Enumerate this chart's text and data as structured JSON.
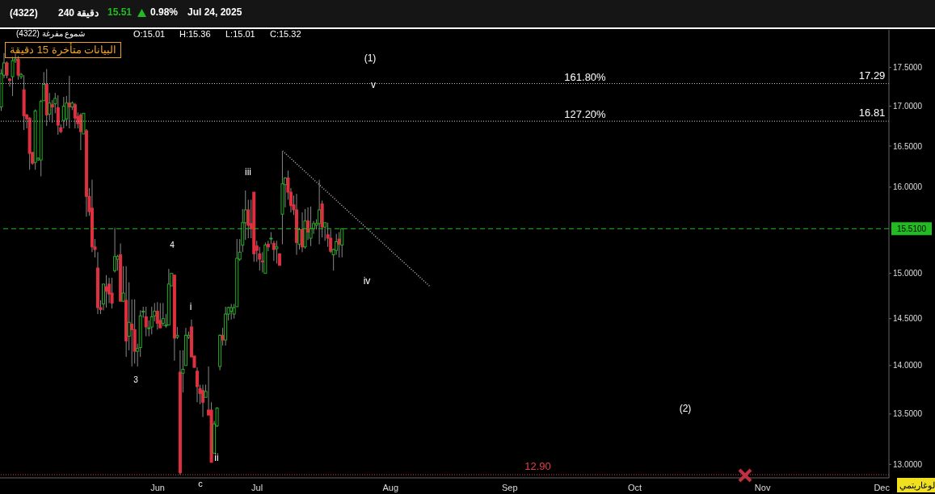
{
  "chart_data": {
    "type": "candlestick",
    "title": "(4322)",
    "subtitle": "240 دقيقة",
    "categories": [
      null,
      null,
      null,
      null,
      null,
      null,
      null,
      null,
      null,
      null,
      null,
      null,
      null,
      null,
      null,
      null,
      null,
      null,
      null,
      null,
      null,
      null,
      null,
      null,
      null,
      null,
      null,
      null,
      null,
      null,
      null,
      null,
      null,
      null,
      null,
      null,
      null,
      null,
      null,
      null,
      null,
      null,
      null,
      null,
      null,
      null,
      null,
      null,
      null,
      null,
      null,
      null,
      null,
      null,
      null,
      "Jun",
      null,
      null,
      null,
      null,
      null,
      null,
      null,
      null,
      null,
      null,
      null,
      null,
      null,
      null,
      null,
      null,
      null,
      null,
      null,
      null,
      null,
      null,
      null,
      null,
      null,
      null,
      null,
      null,
      null,
      null,
      null,
      null,
      null,
      null,
      "Jul",
      null,
      null,
      null,
      null,
      null,
      null,
      null,
      null,
      null,
      null,
      null,
      null,
      null,
      null,
      null,
      null,
      null,
      null,
      null,
      null,
      null,
      null,
      null,
      null,
      null,
      null,
      null,
      null,
      null,
      null,
      null,
      null,
      null,
      null,
      null,
      null,
      null,
      null,
      null,
      null,
      null,
      null,
      null,
      null,
      null,
      null,
      "Aug",
      null,
      null,
      null,
      null,
      null,
      null,
      null,
      null,
      null,
      null,
      null,
      null,
      null,
      null,
      null,
      null,
      null,
      null,
      null,
      null,
      null,
      null,
      null,
      null,
      null,
      null,
      null,
      null,
      null,
      null,
      null,
      null,
      null,
      null,
      null,
      null,
      null,
      null,
      null,
      null,
      null,
      "Sep",
      null,
      null,
      null,
      null,
      null,
      null,
      null,
      null,
      null,
      null,
      null,
      null,
      null,
      null,
      null,
      null,
      null,
      null,
      null,
      null,
      null,
      null,
      null,
      null,
      null,
      null,
      null,
      null,
      null,
      null,
      null,
      null,
      null,
      null,
      null,
      null,
      null,
      null,
      null,
      null,
      null,
      null,
      null,
      "Oct",
      null,
      null,
      null,
      null,
      null,
      null,
      null,
      null,
      null,
      null,
      null,
      null,
      null,
      null,
      null,
      null,
      null,
      null,
      null,
      null,
      null,
      null,
      null,
      null,
      null,
      null,
      null,
      null,
      null,
      null,
      null,
      null,
      null,
      null,
      null,
      null,
      null,
      null,
      null,
      null,
      null,
      null,
      null,
      null,
      "Nov",
      null,
      null,
      null,
      null,
      null,
      null,
      null,
      null,
      null,
      null,
      null,
      null,
      null,
      null,
      null,
      null,
      null,
      null,
      null,
      null,
      null,
      null,
      null,
      null,
      null,
      null,
      null,
      null,
      null,
      null,
      null,
      null,
      null,
      null,
      null,
      null,
      null,
      null,
      null,
      null,
      null,
      "Dec",
      null,
      null
    ],
    "ohlc": [
      [
        16.99,
        17.48,
        16.94,
        17.42
      ],
      [
        17.4,
        17.69,
        17.36,
        17.56
      ],
      [
        17.56,
        17.58,
        17.36,
        17.4
      ],
      [
        17.35,
        17.36,
        17.25,
        17.33
      ],
      [
        17.38,
        17.64,
        17.13,
        17.59
      ],
      [
        17.59,
        17.68,
        17.56,
        17.61
      ],
      [
        17.61,
        17.65,
        17.34,
        17.4
      ],
      [
        17.38,
        17.43,
        17.35,
        17.41
      ],
      [
        17.21,
        17.4,
        16.7,
        16.88
      ],
      [
        16.89,
        16.9,
        16.72,
        16.84
      ],
      [
        16.85,
        16.86,
        16.21,
        16.41
      ],
      [
        16.42,
        16.43,
        16.27,
        16.29
      ],
      [
        16.3,
        16.96,
        16.21,
        16.94
      ],
      [
        16.33,
        16.36,
        16.32,
        16.35
      ],
      [
        16.33,
        17.08,
        16.13,
        17.06
      ],
      [
        17.07,
        17.44,
        17.07,
        17.28
      ],
      [
        17.28,
        17.48,
        16.75,
        16.89
      ],
      [
        16.9,
        17.17,
        16.82,
        17.04
      ],
      [
        17.02,
        17.08,
        16.79,
        16.99
      ],
      [
        17.03,
        17.17,
        16.91,
        17.1
      ],
      [
        16.98,
        17.14,
        16.64,
        16.76
      ],
      [
        16.73,
        16.77,
        16.66,
        16.68
      ],
      [
        16.82,
        17.12,
        16.72,
        17.0
      ],
      [
        16.84,
        17.13,
        16.75,
        17.04
      ],
      [
        17.04,
        17.39,
        16.72,
        16.99
      ],
      [
        16.99,
        17.06,
        16.95,
        17.04
      ],
      [
        17.02,
        17.04,
        16.72,
        16.85
      ],
      [
        16.87,
        16.92,
        16.72,
        16.78
      ],
      [
        16.89,
        16.91,
        16.45,
        16.68
      ],
      [
        16.65,
        16.91,
        16.65,
        16.91
      ],
      [
        16.69,
        16.71,
        15.65,
        15.89
      ],
      [
        15.89,
        15.99,
        15.66,
        15.71
      ],
      [
        15.75,
        16.09,
        15.24,
        15.3
      ],
      [
        15.3,
        15.39,
        15.18,
        15.27
      ],
      [
        15.06,
        15.24,
        14.55,
        14.62
      ],
      [
        14.62,
        14.7,
        14.55,
        14.6
      ],
      [
        14.66,
        14.88,
        14.59,
        14.88
      ],
      [
        14.85,
        14.98,
        14.62,
        14.8
      ],
      [
        14.88,
        14.95,
        14.67,
        14.77
      ],
      [
        14.78,
        14.95,
        14.61,
        14.67
      ],
      [
        15.03,
        15.52,
        15.01,
        15.19
      ],
      [
        15.16,
        15.21,
        15.03,
        15.19
      ],
      [
        15.21,
        15.34,
        14.69,
        14.69
      ],
      [
        14.69,
        15.08,
        14.68,
        14.78
      ],
      [
        14.7,
        15.08,
        14.09,
        14.26
      ],
      [
        14.31,
        14.9,
        14.16,
        14.46
      ],
      [
        14.44,
        14.71,
        13.99,
        14.38
      ],
      [
        14.38,
        14.71,
        14.02,
        14.15
      ],
      [
        14.15,
        14.23,
        13.99,
        14.18
      ],
      [
        14.19,
        14.59,
        14.09,
        14.53
      ],
      [
        14.58,
        14.63,
        14.51,
        14.58
      ],
      [
        14.52,
        14.63,
        14.31,
        14.41
      ],
      [
        14.4,
        14.48,
        14.31,
        14.4
      ],
      [
        14.41,
        14.63,
        14.33,
        14.52
      ],
      [
        14.53,
        14.67,
        14.47,
        14.58
      ],
      [
        14.58,
        14.68,
        14.38,
        14.45
      ],
      [
        14.48,
        14.67,
        14.4,
        14.4
      ],
      [
        14.45,
        14.67,
        14.42,
        14.5
      ],
      [
        14.43,
        14.55,
        14.4,
        14.43
      ],
      [
        14.43,
        15.05,
        14.43,
        14.88
      ],
      [
        14.86,
        15.0,
        14.86,
        15.0
      ],
      [
        14.98,
        14.98,
        14.05,
        14.29
      ],
      [
        14.3,
        14.41,
        14.28,
        14.32
      ],
      [
        13.93,
        14.16,
        12.9,
        12.92
      ],
      [
        13.92,
        14.16,
        13.72,
        13.96
      ],
      [
        14.0,
        14.4,
        14.0,
        14.32
      ],
      [
        14.3,
        14.36,
        14.28,
        14.32
      ],
      [
        14.41,
        14.49,
        14.09,
        14.09
      ],
      [
        14.1,
        14.1,
        13.98,
        13.98
      ],
      [
        13.94,
        13.98,
        13.62,
        13.78
      ],
      [
        13.76,
        13.8,
        13.6,
        13.71
      ],
      [
        13.74,
        13.8,
        13.47,
        13.62
      ],
      [
        13.67,
        13.8,
        13.67,
        13.73
      ],
      [
        13.54,
        13.99,
        13.49,
        13.49
      ],
      [
        13.54,
        13.62,
        13.02,
        13.02
      ],
      [
        13.11,
        13.43,
        13.11,
        13.4
      ],
      [
        13.38,
        13.57,
        13.37,
        13.56
      ],
      [
        13.99,
        14.33,
        13.95,
        14.32
      ],
      [
        14.32,
        14.4,
        14.21,
        14.27
      ],
      [
        14.27,
        14.63,
        14.21,
        14.55
      ],
      [
        14.55,
        14.63,
        14.48,
        14.62
      ],
      [
        14.58,
        14.66,
        14.49,
        14.62
      ],
      [
        14.55,
        14.66,
        14.5,
        14.62
      ],
      [
        14.63,
        15.39,
        14.63,
        15.17
      ],
      [
        15.16,
        15.39,
        15.14,
        15.24
      ],
      [
        15.32,
        15.74,
        15.24,
        15.58
      ],
      [
        15.58,
        15.96,
        15.38,
        15.73
      ],
      [
        15.73,
        15.85,
        15.4,
        15.55
      ],
      [
        15.57,
        15.85,
        15.4,
        15.51
      ],
      [
        15.94,
        15.94,
        15.13,
        15.22
      ],
      [
        15.31,
        15.37,
        15.13,
        15.26
      ],
      [
        15.22,
        15.3,
        15.03,
        15.16
      ],
      [
        15.14,
        15.24,
        15.01,
        15.13
      ],
      [
        15.0,
        15.35,
        15.0,
        15.32
      ],
      [
        15.33,
        15.37,
        15.25,
        15.3
      ],
      [
        15.4,
        15.47,
        15.33,
        15.4
      ],
      [
        15.34,
        15.37,
        15.14,
        15.27
      ],
      [
        15.28,
        15.37,
        15.11,
        15.3
      ],
      [
        15.22,
        15.23,
        15.09,
        15.09
      ],
      [
        15.68,
        16.43,
        15.33,
        16.04
      ],
      [
        16.03,
        16.12,
        15.76,
        16.11
      ],
      [
        16.11,
        16.2,
        15.85,
        15.94
      ],
      [
        15.94,
        15.99,
        15.7,
        15.78
      ],
      [
        15.79,
        15.9,
        15.67,
        15.73
      ],
      [
        15.73,
        15.92,
        15.21,
        15.35
      ],
      [
        15.33,
        15.52,
        15.27,
        15.5
      ],
      [
        15.5,
        15.7,
        15.24,
        15.3
      ],
      [
        15.3,
        15.74,
        15.28,
        15.6
      ],
      [
        15.6,
        15.76,
        15.38,
        15.47
      ],
      [
        15.4,
        15.77,
        15.31,
        15.51
      ],
      [
        15.51,
        15.6,
        15.45,
        15.57
      ],
      [
        15.55,
        15.62,
        15.5,
        15.57
      ],
      [
        15.57,
        16.09,
        15.33,
        15.73
      ],
      [
        15.8,
        15.84,
        15.41,
        15.53
      ],
      [
        15.53,
        15.58,
        15.37,
        15.58
      ],
      [
        15.44,
        15.58,
        15.3,
        15.4
      ],
      [
        15.4,
        15.5,
        15.23,
        15.25
      ],
      [
        15.21,
        15.28,
        15.03,
        15.27
      ],
      [
        15.26,
        15.45,
        15.21,
        15.36
      ],
      [
        15.39,
        15.47,
        15.18,
        15.33
      ],
      [
        15.32,
        15.51,
        15.18,
        15.51
      ],
      null,
      null,
      null,
      null,
      null,
      null,
      null,
      null,
      null,
      null,
      null,
      null,
      null,
      null,
      null,
      null,
      null,
      null,
      null,
      null,
      null,
      null,
      null,
      null,
      null,
      null,
      null,
      null,
      null,
      null,
      null,
      null,
      null,
      null,
      null,
      null,
      null,
      null,
      null,
      null,
      null,
      null,
      null,
      null,
      null,
      null,
      null,
      null,
      null,
      null,
      null,
      null,
      null,
      null,
      null,
      null,
      null,
      null,
      null,
      null,
      null,
      null,
      null,
      null,
      null,
      null,
      null,
      null,
      null,
      null,
      null,
      null,
      null,
      null,
      null,
      null,
      null,
      null,
      null,
      null,
      null,
      null,
      null,
      null,
      null,
      null,
      null,
      null,
      null,
      null,
      null,
      null,
      null,
      null,
      null,
      null,
      null,
      null,
      null,
      null,
      null,
      null,
      null,
      null,
      null,
      null,
      null,
      null,
      null,
      null,
      null,
      null,
      null,
      null,
      null,
      null,
      null,
      null,
      null,
      null,
      null,
      null,
      null,
      null,
      null,
      null,
      null,
      null,
      null,
      null,
      null,
      null,
      null,
      null,
      null,
      null,
      null,
      null,
      null,
      null,
      null,
      null,
      null,
      null,
      null,
      null,
      null,
      null,
      null,
      null,
      null,
      null,
      null,
      null,
      null,
      null,
      null,
      null,
      null,
      null,
      null,
      null,
      null,
      null,
      null,
      null,
      null,
      null,
      null,
      null,
      null,
      null,
      null,
      null,
      null,
      null,
      null,
      null,
      null,
      null,
      null,
      null,
      null,
      null,
      null,
      null,
      null,
      null,
      null,
      null,
      null,
      null
    ],
    "series": [
      {
        "type": "line",
        "color": "#bbbbbb",
        "line_style": "dotted",
        "values": [
          null,
          null,
          null,
          null,
          null,
          null,
          null,
          null,
          null,
          null,
          null,
          null,
          null,
          null,
          null,
          null,
          null,
          null,
          null,
          null,
          null,
          null,
          null,
          null,
          null,
          null,
          null,
          null,
          null,
          null,
          null,
          null,
          null,
          null,
          null,
          null,
          null,
          null,
          null,
          null,
          null,
          null,
          null,
          null,
          null,
          null,
          null,
          null,
          null,
          null,
          null,
          null,
          null,
          null,
          null,
          null,
          null,
          null,
          null,
          null,
          null,
          null,
          null,
          null,
          null,
          null,
          null,
          null,
          null,
          null,
          null,
          null,
          null,
          null,
          null,
          null,
          null,
          null,
          null,
          null,
          null,
          null,
          null,
          null,
          null,
          null,
          null,
          null,
          null,
          null,
          null,
          null,
          null,
          null,
          null,
          null,
          null,
          null,
          null,
          16.44,
          null,
          null,
          null,
          null,
          null,
          null,
          null,
          null,
          null,
          null,
          null,
          null,
          null,
          null,
          null,
          null,
          null,
          null,
          null,
          null,
          null,
          null,
          null,
          null,
          null,
          null,
          null,
          null,
          null,
          null,
          null,
          null,
          null,
          null,
          null,
          null,
          null,
          null,
          null,
          null,
          null,
          null,
          null,
          null,
          null,
          null,
          null,
          null,
          null,
          null,
          null,
          14.85,
          null,
          null,
          null,
          null,
          null,
          null,
          null,
          null,
          null,
          null,
          null,
          null,
          null,
          null,
          null,
          null,
          null,
          null,
          null,
          null,
          null,
          null,
          null,
          null,
          null,
          null,
          null,
          null,
          null,
          null,
          null,
          null,
          null,
          null,
          null,
          null,
          null,
          null,
          null,
          null,
          null,
          null,
          null,
          null,
          null,
          null,
          null,
          null,
          null,
          null,
          null,
          null,
          null,
          null,
          null,
          null,
          null,
          null,
          null,
          null,
          null,
          null,
          null,
          null,
          null,
          null,
          null,
          null,
          null,
          null,
          null,
          null,
          null,
          null,
          null,
          null,
          null,
          null,
          null,
          null,
          null,
          null,
          null,
          null,
          null,
          null,
          null,
          null,
          null,
          null,
          null,
          null,
          null,
          null,
          null,
          null,
          null,
          null,
          null,
          null,
          null,
          null,
          null,
          null,
          null,
          null,
          null,
          null,
          null,
          null,
          null,
          null,
          null,
          null,
          null,
          null,
          null,
          null,
          null,
          null,
          null,
          null,
          null,
          null,
          null,
          null,
          null,
          null,
          null,
          null,
          null,
          null,
          null,
          null,
          null,
          null,
          null,
          null,
          null,
          null,
          null,
          null,
          null,
          null,
          null,
          null,
          null,
          null,
          null,
          null,
          null,
          null,
          null,
          null,
          null,
          null,
          null,
          null,
          null,
          null,
          null
        ]
      }
    ],
    "ylim": [
      12.87,
      18.0
    ],
    "yticks": [
      {
        "value": 13,
        "label": "13.0000"
      },
      {
        "value": 13.5,
        "label": "13.5000"
      },
      {
        "value": 14,
        "label": "14.0000"
      },
      {
        "value": 14.5,
        "label": "14.5000"
      },
      {
        "value": 15,
        "label": "15.0000"
      },
      {
        "value": 16,
        "label": "16.0000"
      },
      {
        "value": 16.5,
        "label": "16.5000"
      },
      {
        "value": 17,
        "label": "17.0000"
      },
      {
        "value": 17.5,
        "label": "17.5000"
      }
    ],
    "log": true,
    "ref_lines": [
      {
        "axis": "y",
        "value": 17.29,
        "label": "17.29",
        "color": "#cccccc",
        "line_style": "dotted"
      },
      {
        "axis": "y",
        "value": 16.81,
        "label": "16.81",
        "color": "#cccccc",
        "line_style": "dotted"
      },
      {
        "axis": "y",
        "value": 15.51,
        "label": "15.5100",
        "color": "#22bb22",
        "line_style": "dashed"
      },
      {
        "axis": "y",
        "value": 12.9,
        "label": "12.90",
        "color": "#e0404a",
        "line_style": "dotted"
      }
    ],
    "annotations": [
      "15.51",
      "0.98%",
      "Jul 24, 2025",
      "شموع مفرغة (4322)",
      "O:15.01",
      "H:15.36",
      "L:15.01",
      "C:15.32",
      "البيانات متأخرة 15 دقيقة",
      "لوغاريتمي",
      "161.80%",
      "127.20%",
      "(1)",
      "v",
      "iii",
      "4",
      "i",
      "3",
      "iv",
      "ii",
      "c",
      "(2)"
    ]
  }
}
